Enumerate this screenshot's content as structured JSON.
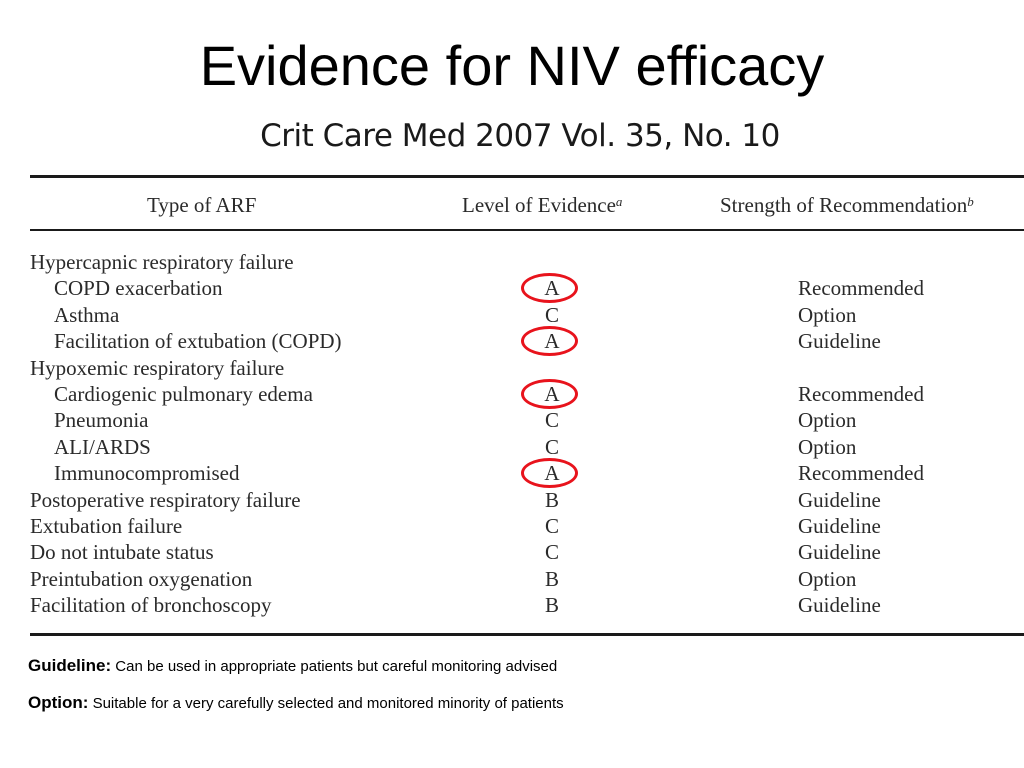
{
  "slide": {
    "title": "Evidence for NIV efficacy",
    "citation": "Crit Care Med 2007 Vol. 35, No. 10"
  },
  "table": {
    "headers": {
      "type": "Type of ARF",
      "level": "Level of Evidence",
      "level_sup": "a",
      "strength": "Strength of Recommendation",
      "strength_sup": "b"
    },
    "rows": [
      {
        "type": "Hypercapnic respiratory failure",
        "level": "",
        "strength": ""
      },
      {
        "type": "COPD exacerbation",
        "level": "A",
        "strength": "Recommended"
      },
      {
        "type": "Asthma",
        "level": "C",
        "strength": "Option"
      },
      {
        "type": "Facilitation of extubation (COPD)",
        "level": "A",
        "strength": "Guideline"
      },
      {
        "type": "Hypoxemic respiratory failure",
        "level": "",
        "strength": ""
      },
      {
        "type": "Cardiogenic pulmonary edema",
        "level": "A",
        "strength": "Recommended"
      },
      {
        "type": "Pneumonia",
        "level": "C",
        "strength": "Option"
      },
      {
        "type": "ALI/ARDS",
        "level": "C",
        "strength": "Option"
      },
      {
        "type": "Immunocompromised",
        "level": "A",
        "strength": "Recommended"
      },
      {
        "type": "Postoperative respiratory failure",
        "level": "B",
        "strength": "Guideline"
      },
      {
        "type": "Extubation failure",
        "level": "C",
        "strength": "Guideline"
      },
      {
        "type": "Do not intubate status",
        "level": "C",
        "strength": "Guideline"
      },
      {
        "type": "Preintubation oxygenation",
        "level": "B",
        "strength": "Option"
      },
      {
        "type": "Facilitation of bronchoscopy",
        "level": "B",
        "strength": "Guideline"
      }
    ]
  },
  "notes": {
    "guideline_term": "Guideline:",
    "guideline_text": " Can be used in appropriate patients but careful monitoring advised",
    "option_term": "Option:",
    "option_text": " Suitable for a very carefully selected and monitored minority of patients"
  },
  "colors": {
    "highlight_circle": "#e8131c",
    "rule": "#1a1a1a"
  }
}
